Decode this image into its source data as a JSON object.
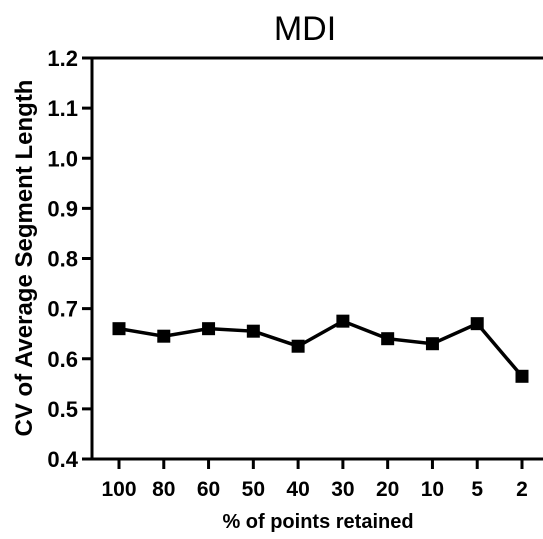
{
  "chart_data": {
    "type": "line",
    "title": "MDI",
    "xlabel": "% of points retained",
    "ylabel": "CV of Average Segment Length",
    "categories": [
      "100",
      "80",
      "60",
      "50",
      "40",
      "30",
      "20",
      "10",
      "5",
      "2"
    ],
    "category_tick_labels": [
      "100",
      "80",
      "60",
      "50",
      "40",
      "30",
      "20",
      "10",
      "5",
      "2"
    ],
    "series": [
      {
        "values": [
          0.66,
          0.645,
          0.66,
          0.655,
          0.625,
          0.675,
          0.64,
          0.63,
          0.67,
          0.565
        ]
      }
    ],
    "ylim": [
      0.4,
      1.2
    ],
    "yticks": [
      0.4,
      0.5,
      0.6,
      0.7,
      0.8,
      0.9,
      1.0,
      1.1,
      1.2
    ],
    "ytick_labels": [
      "0.4",
      "0.5",
      "0.6",
      "0.7",
      "0.8",
      "0.9",
      "1.0",
      "1.1",
      "1.2"
    ],
    "grid": false,
    "legend": "none",
    "marker": "square",
    "color": "#000000"
  }
}
